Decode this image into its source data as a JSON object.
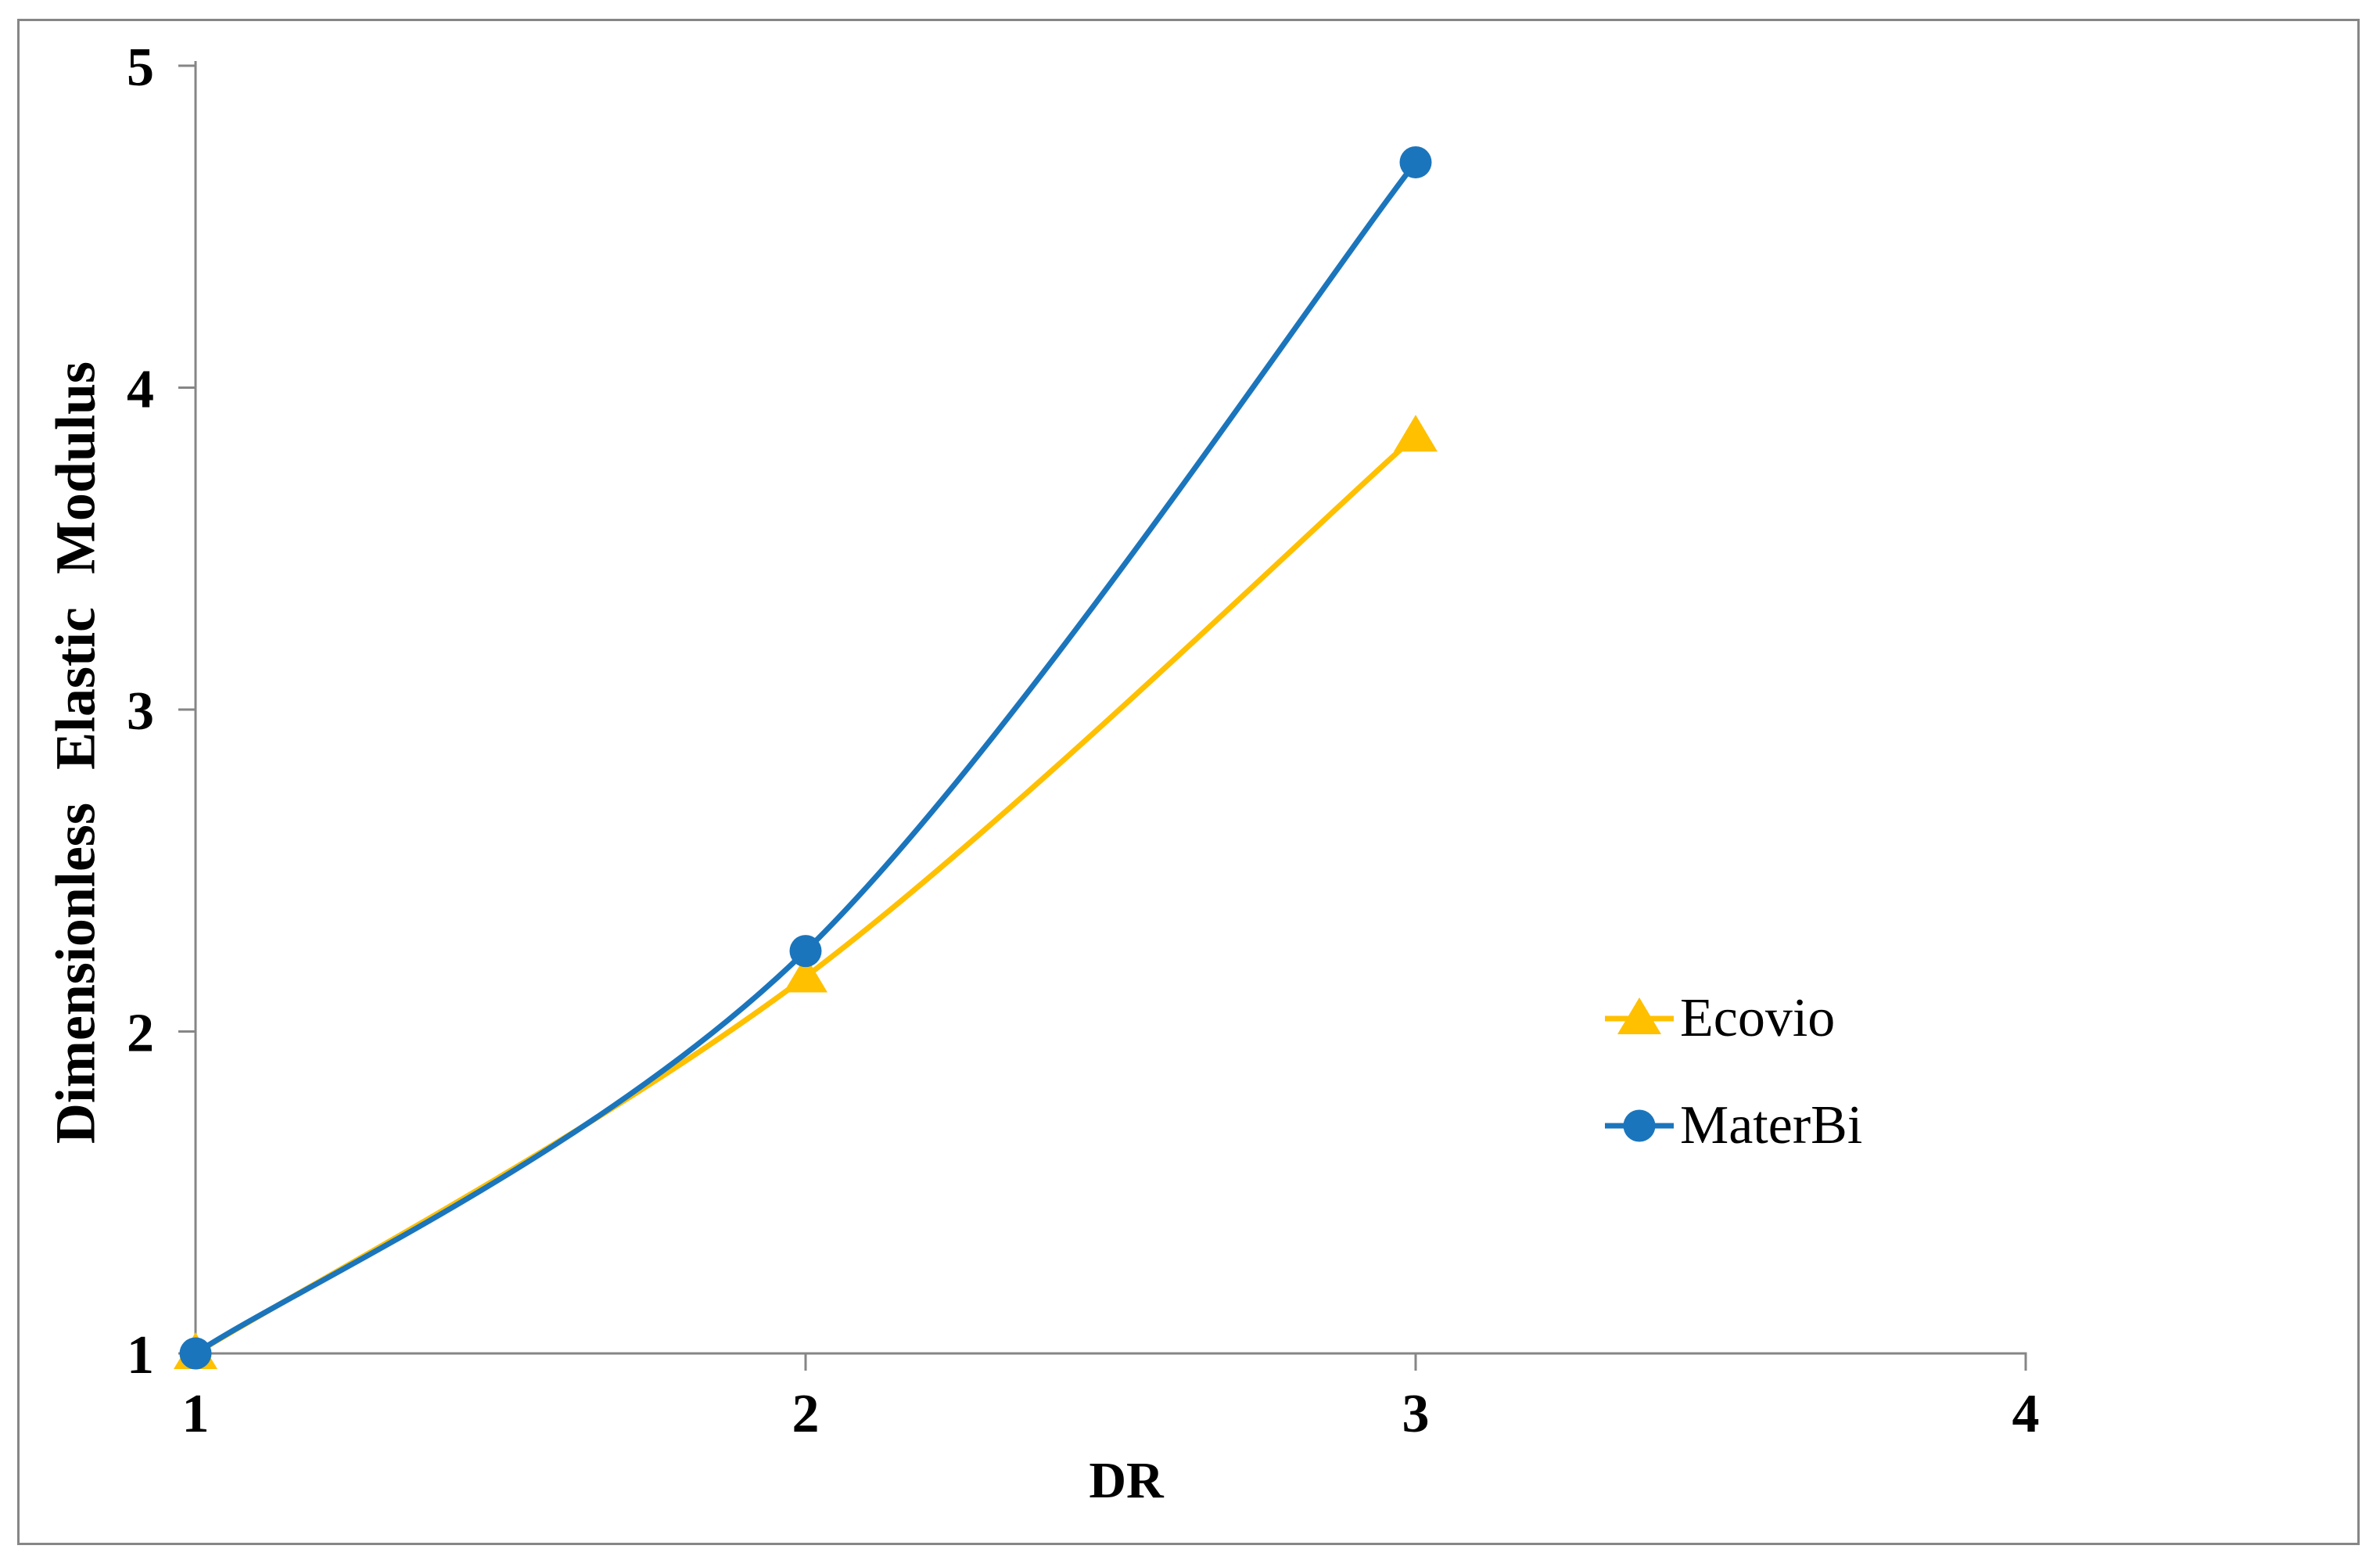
{
  "chart_data": {
    "type": "line",
    "x": [
      1,
      2,
      3
    ],
    "series": [
      {
        "name": "Ecovio",
        "marker": "triangle",
        "color": "#FFC000",
        "values": [
          1.0,
          2.17,
          3.85
        ]
      },
      {
        "name": "MaterBi",
        "marker": "circle",
        "color": "#1B75BC",
        "values": [
          1.0,
          2.25,
          4.7
        ]
      }
    ],
    "xlabel": "DR",
    "ylabel": "Dimensionless Elastic Modulus",
    "x_ticks": [
      "1",
      "2",
      "3",
      "4"
    ],
    "y_ticks": [
      "1",
      "2",
      "3",
      "4",
      "5"
    ],
    "xlim": [
      1,
      4
    ],
    "ylim": [
      1,
      5
    ],
    "grid": false,
    "smoothed_lines": true,
    "legend_position": "middle-right",
    "axis_color": "#868686",
    "text_color": "#000000",
    "background": "#FFFFFF"
  }
}
